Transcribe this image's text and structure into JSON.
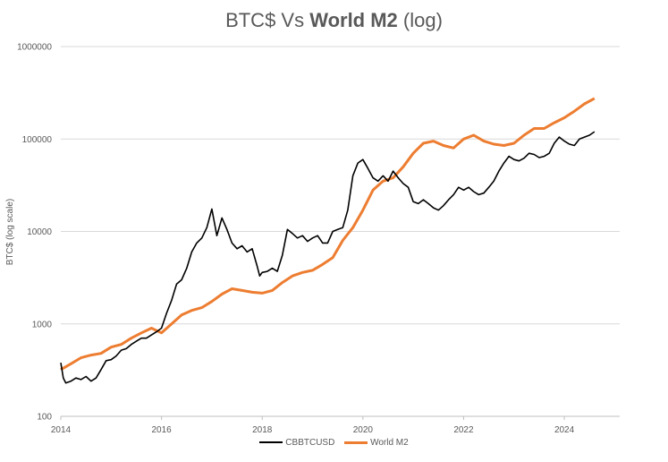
{
  "chart_data": {
    "type": "line",
    "title_prefix": "BTC$ Vs ",
    "title_bold": "World M2",
    "title_suffix": " (log)",
    "xlabel": "",
    "ylabel": "BTC$ (log scale)",
    "yscale": "log",
    "ylim": [
      100,
      1000000
    ],
    "xlim": [
      2014,
      2025.1
    ],
    "y_ticks": [
      "100",
      "1000",
      "10000",
      "100000",
      "1000000"
    ],
    "x_ticks": [
      "2014",
      "2016",
      "2018",
      "2020",
      "2022",
      "2024"
    ],
    "grid": "horizontal",
    "legend": "bottom",
    "series": [
      {
        "name": "CBBTCUSD",
        "color": "#000000",
        "x": [
          2014.0,
          2014.05,
          2014.1,
          2014.2,
          2014.3,
          2014.4,
          2014.5,
          2014.6,
          2014.7,
          2014.8,
          2014.9,
          2015.0,
          2015.1,
          2015.2,
          2015.3,
          2015.4,
          2015.5,
          2015.6,
          2015.7,
          2015.8,
          2015.9,
          2016.0,
          2016.1,
          2016.2,
          2016.3,
          2016.4,
          2016.5,
          2016.6,
          2016.7,
          2016.8,
          2016.9,
          2017.0,
          2017.1,
          2017.2,
          2017.3,
          2017.4,
          2017.5,
          2017.6,
          2017.7,
          2017.8,
          2017.9,
          2017.95,
          2018.0,
          2018.1,
          2018.2,
          2018.3,
          2018.4,
          2018.5,
          2018.6,
          2018.7,
          2018.8,
          2018.9,
          2019.0,
          2019.1,
          2019.2,
          2019.3,
          2019.4,
          2019.5,
          2019.6,
          2019.7,
          2019.8,
          2019.9,
          2020.0,
          2020.1,
          2020.2,
          2020.3,
          2020.4,
          2020.5,
          2020.6,
          2020.7,
          2020.8,
          2020.9,
          2021.0,
          2021.1,
          2021.2,
          2021.3,
          2021.4,
          2021.5,
          2021.6,
          2021.7,
          2021.8,
          2021.9,
          2022.0,
          2022.1,
          2022.2,
          2022.3,
          2022.4,
          2022.5,
          2022.6,
          2022.7,
          2022.8,
          2022.9,
          2023.0,
          2023.1,
          2023.2,
          2023.3,
          2023.4,
          2023.5,
          2023.6,
          2023.7,
          2023.8,
          2023.9,
          2024.0,
          2024.1,
          2024.2,
          2024.3,
          2024.4,
          2024.5,
          2024.6
        ],
        "values": [
          380,
          260,
          230,
          240,
          260,
          250,
          270,
          240,
          260,
          320,
          400,
          410,
          450,
          520,
          540,
          600,
          650,
          700,
          700,
          760,
          820,
          900,
          1300,
          1800,
          2700,
          3000,
          4000,
          6000,
          7500,
          8500,
          11000,
          17500,
          9000,
          14000,
          10500,
          7500,
          6500,
          7000,
          6000,
          6500,
          4200,
          3300,
          3600,
          3700,
          4000,
          3700,
          5500,
          10500,
          9500,
          8500,
          9000,
          7800,
          8500,
          9000,
          7500,
          7500,
          10000,
          10500,
          11000,
          17000,
          40000,
          55000,
          60000,
          48000,
          38000,
          35000,
          40000,
          35000,
          45000,
          38000,
          33000,
          30000,
          21000,
          20000,
          22000,
          20000,
          18000,
          17000,
          19000,
          22000,
          25000,
          30000,
          28000,
          30000,
          27000,
          25000,
          26000,
          30000,
          35000,
          45000,
          55000,
          65000,
          60000,
          58000,
          62000,
          70000,
          68000,
          63000,
          65000,
          70000,
          90000,
          105000,
          95000,
          88000,
          85000,
          100000,
          105000,
          110000,
          120000
        ]
      },
      {
        "name": "World M2",
        "color": "#ED7D31",
        "x": [
          2014.0,
          2014.2,
          2014.4,
          2014.6,
          2014.8,
          2015.0,
          2015.2,
          2015.4,
          2015.6,
          2015.8,
          2016.0,
          2016.2,
          2016.4,
          2016.6,
          2016.8,
          2017.0,
          2017.2,
          2017.4,
          2017.6,
          2017.8,
          2018.0,
          2018.2,
          2018.4,
          2018.6,
          2018.8,
          2019.0,
          2019.2,
          2019.4,
          2019.6,
          2019.8,
          2020.0,
          2020.2,
          2020.4,
          2020.6,
          2020.8,
          2021.0,
          2021.2,
          2021.4,
          2021.6,
          2021.8,
          2022.0,
          2022.2,
          2022.4,
          2022.6,
          2022.8,
          2023.0,
          2023.2,
          2023.4,
          2023.6,
          2023.8,
          2024.0,
          2024.2,
          2024.4,
          2024.6
        ],
        "values": [
          320,
          370,
          430,
          460,
          480,
          560,
          600,
          700,
          800,
          900,
          800,
          1000,
          1250,
          1400,
          1500,
          1750,
          2100,
          2400,
          2300,
          2200,
          2150,
          2300,
          2800,
          3300,
          3600,
          3800,
          4400,
          5200,
          8000,
          11000,
          17000,
          28000,
          35000,
          38000,
          50000,
          70000,
          90000,
          95000,
          85000,
          80000,
          100000,
          110000,
          95000,
          88000,
          85000,
          90000,
          110000,
          130000,
          130000,
          150000,
          170000,
          200000,
          240000,
          275000
        ]
      }
    ]
  }
}
